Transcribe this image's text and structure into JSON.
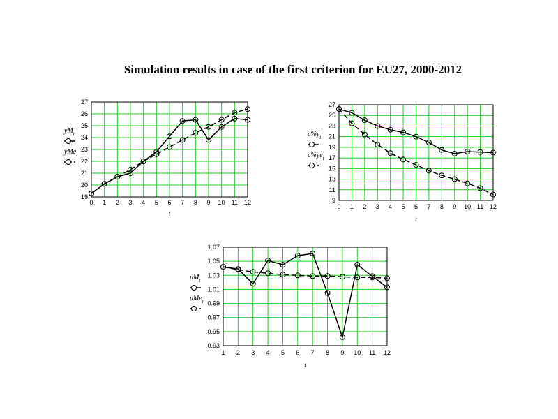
{
  "title": "Simulation results in case of the first criterion for EU27, 2000-2012",
  "colors": {
    "grid": "#22cc22",
    "line": "#000000",
    "background": "#ffffff"
  },
  "chart_data": [
    {
      "type": "line",
      "xlabel": "t",
      "x": [
        0,
        1,
        2,
        3,
        4,
        5,
        6,
        7,
        8,
        9,
        10,
        11,
        12
      ],
      "xlim": [
        0,
        12
      ],
      "ylim": [
        19,
        27
      ],
      "yticks": [
        19,
        20,
        21,
        22,
        23,
        24,
        25,
        26,
        27
      ],
      "grid": true,
      "legend_position": "left",
      "series": [
        {
          "name": "yM",
          "subscript": "t",
          "style": "solid",
          "marker": "circle",
          "values": [
            19.3,
            20.1,
            20.7,
            21.0,
            22.0,
            22.8,
            24.1,
            25.4,
            25.5,
            23.8,
            24.9,
            25.6,
            25.5
          ]
        },
        {
          "name": "yMe",
          "subscript": "t",
          "style": "dashed",
          "marker": "circle",
          "values": [
            19.3,
            20.1,
            20.7,
            21.3,
            22.0,
            22.6,
            23.2,
            23.8,
            24.4,
            24.9,
            25.5,
            26.1,
            26.4
          ]
        }
      ]
    },
    {
      "type": "line",
      "xlabel": "t",
      "x": [
        0,
        1,
        2,
        3,
        4,
        5,
        6,
        7,
        8,
        9,
        10,
        11,
        12
      ],
      "xlim": [
        0,
        12
      ],
      "ylim": [
        9,
        27
      ],
      "yticks": [
        9,
        11,
        13,
        15,
        17,
        19,
        21,
        23,
        25,
        27
      ],
      "grid": true,
      "legend_position": "left",
      "series": [
        {
          "name": "c%y",
          "subscript": "t",
          "style": "solid",
          "marker": "circle",
          "values": [
            26.2,
            25.5,
            24.1,
            23.0,
            22.3,
            21.8,
            21.0,
            19.9,
            18.5,
            17.8,
            18.2,
            18.1,
            18.0
          ]
        },
        {
          "name": "c%ye",
          "subscript": "t",
          "style": "dashed",
          "marker": "circle",
          "values": [
            26.2,
            23.5,
            21.4,
            19.5,
            17.9,
            16.7,
            15.7,
            14.6,
            13.7,
            13.0,
            12.2,
            11.3,
            10.1
          ]
        }
      ]
    },
    {
      "type": "line",
      "xlabel": "t",
      "x": [
        1,
        2,
        3,
        4,
        5,
        6,
        7,
        8,
        9,
        10,
        11,
        12
      ],
      "xlim": [
        1,
        12
      ],
      "ylim": [
        0.93,
        1.07
      ],
      "yticks": [
        0.93,
        0.95,
        0.97,
        0.99,
        1.01,
        1.03,
        1.05,
        1.07
      ],
      "grid": true,
      "legend_position": "left",
      "series": [
        {
          "name": "μM",
          "subscript": "t",
          "style": "solid",
          "marker": "circle",
          "values": [
            1.042,
            1.039,
            1.018,
            1.051,
            1.045,
            1.058,
            1.061,
            1.005,
            0.942,
            1.045,
            1.029,
            1.013
          ]
        },
        {
          "name": "μMe",
          "subscript": "t",
          "style": "dashed",
          "marker": "circle",
          "values": [
            1.042,
            1.038,
            1.035,
            1.033,
            1.031,
            1.03,
            1.029,
            1.029,
            1.028,
            1.027,
            1.027,
            1.026
          ]
        }
      ]
    }
  ]
}
